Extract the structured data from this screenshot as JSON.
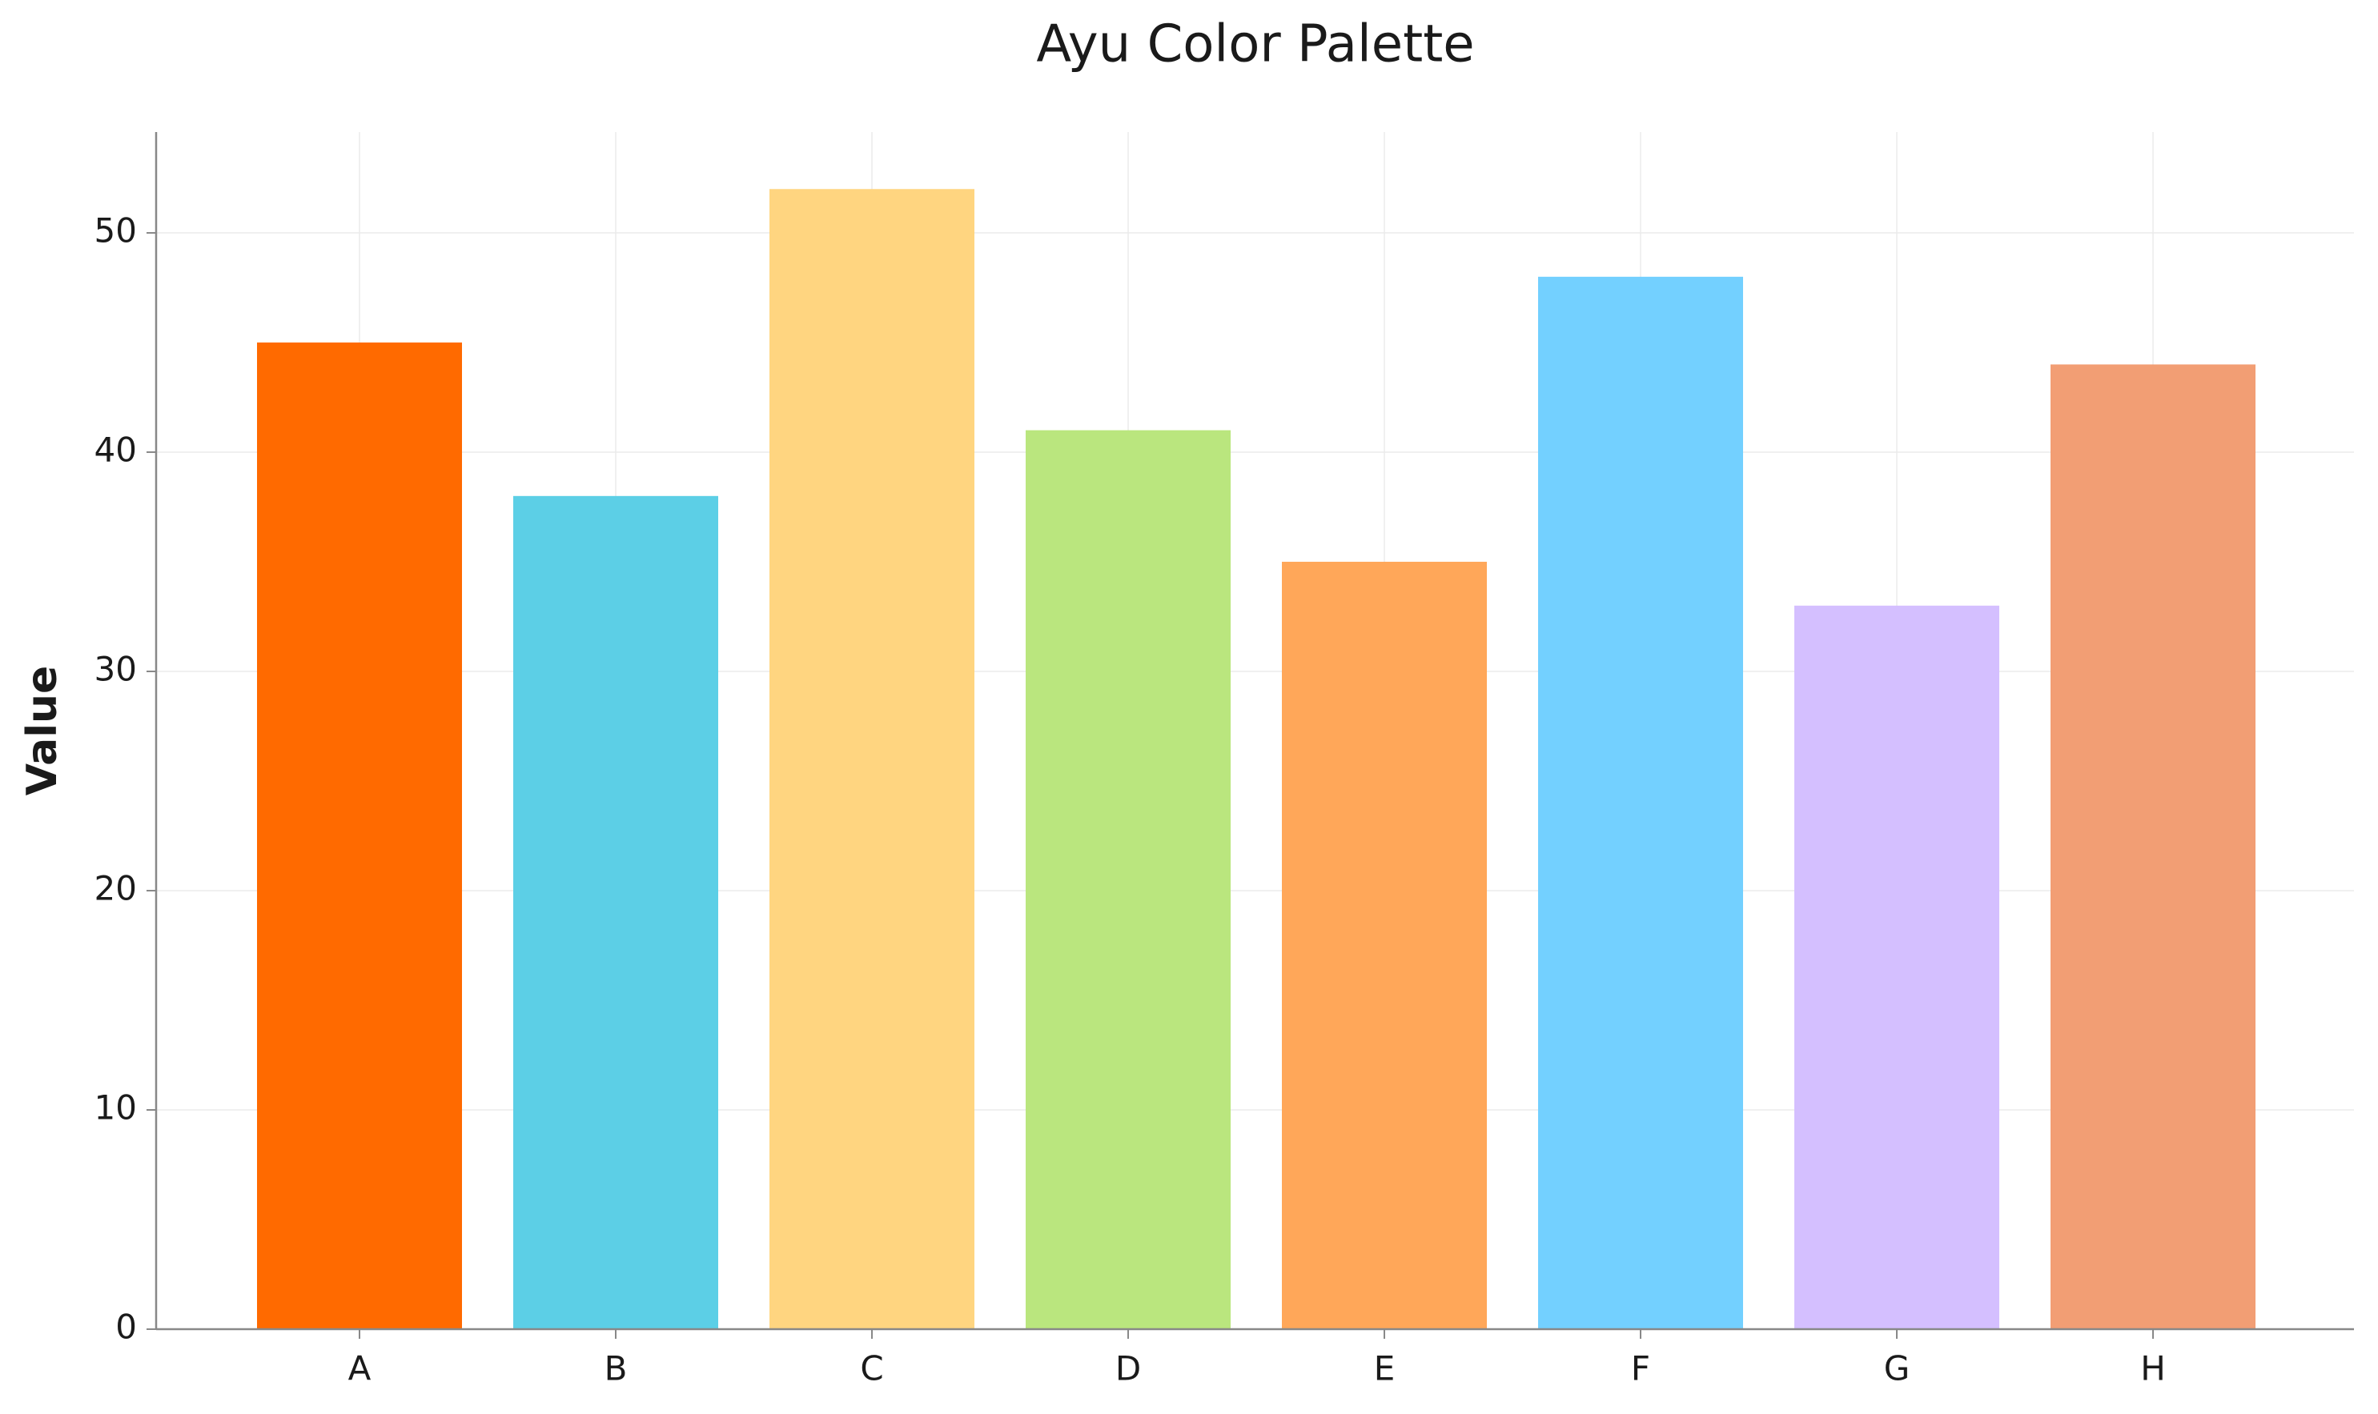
{
  "chart_data": {
    "type": "bar",
    "title": "Ayu Color Palette",
    "y_label": "Value",
    "categories": [
      "A",
      "B",
      "C",
      "D",
      "E",
      "F",
      "G",
      "H"
    ],
    "values": [
      45,
      38,
      52,
      41,
      35,
      48,
      33,
      44
    ],
    "colors": [
      "#ff6a00",
      "#5ccfe6",
      "#ffd580",
      "#bae67e",
      "#ffa759",
      "#73d0ff",
      "#d4bfff",
      "#f29e74"
    ],
    "ylim": [
      0,
      54.6
    ],
    "yticks": [
      0,
      10,
      20,
      30,
      40,
      50
    ],
    "grid": true
  }
}
